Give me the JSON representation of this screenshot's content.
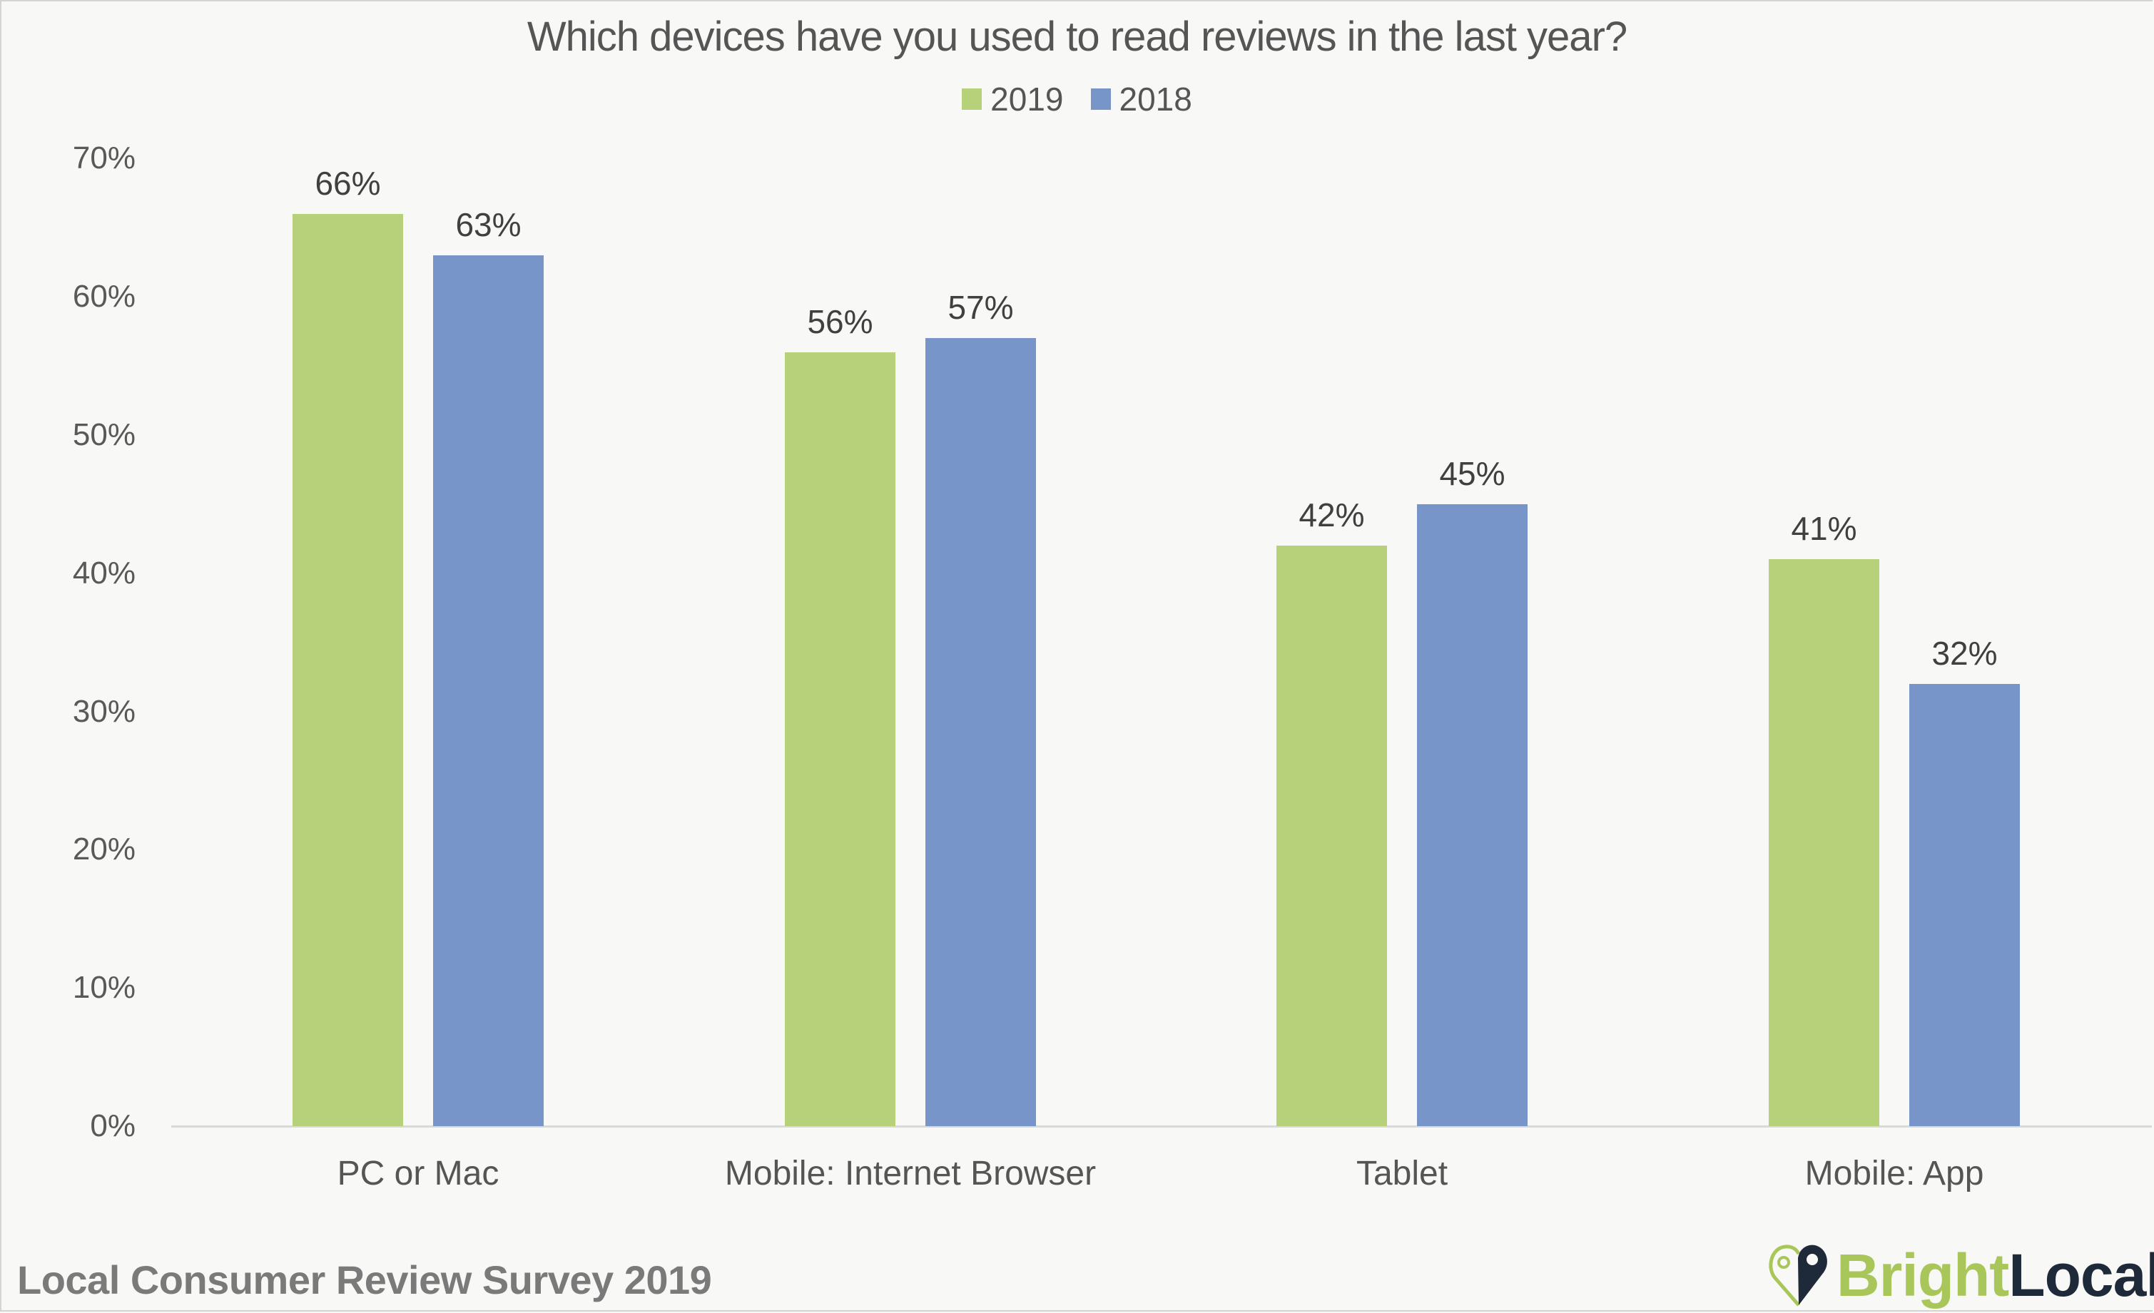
{
  "chart_data": {
    "type": "bar",
    "title": "Which devices have you used to read reviews in the last year?",
    "categories": [
      "PC or Mac",
      "Mobile: Internet Browser",
      "Tablet",
      "Mobile: App"
    ],
    "series": [
      {
        "name": "2019",
        "color": "#b7d17b",
        "values": [
          66,
          56,
          42,
          41
        ]
      },
      {
        "name": "2018",
        "color": "#7795c9",
        "values": [
          63,
          57,
          45,
          32
        ]
      }
    ],
    "data_labels": {
      "2019": [
        "66%",
        "56%",
        "42%",
        "41%"
      ],
      "2018": [
        "63%",
        "57%",
        "45%",
        "32%"
      ]
    },
    "xlabel": "",
    "ylabel": "",
    "ylim": [
      0,
      70
    ],
    "yticks": [
      "0%",
      "10%",
      "20%",
      "30%",
      "40%",
      "50%",
      "60%",
      "70%"
    ],
    "grid": false,
    "legend_position": "top"
  },
  "footer": {
    "source": "Local Consumer Review Survey 2019"
  },
  "logo": {
    "bright": "Bright",
    "local": "Local"
  }
}
